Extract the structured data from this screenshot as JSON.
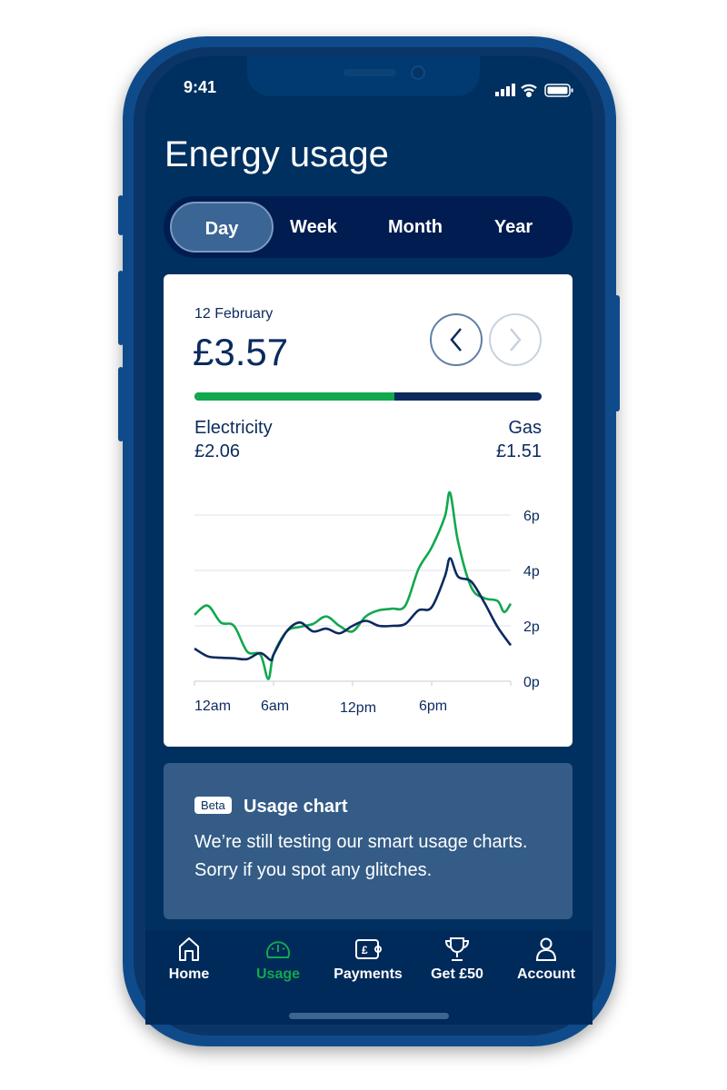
{
  "status_bar": {
    "time": "9:41"
  },
  "page_title": "Energy usage",
  "period_tabs": [
    {
      "label": "Day",
      "active": true
    },
    {
      "label": "Week"
    },
    {
      "label": "Month"
    },
    {
      "label": "Year"
    }
  ],
  "summary": {
    "date": "12 February",
    "total": "£3.57",
    "electricity_label": "Electricity",
    "electricity_value": "£2.06",
    "gas_label": "Gas",
    "gas_value": "£1.51",
    "electricity_share": 0.577
  },
  "colors": {
    "electricity": "#11a84e",
    "gas": "#0b2a5e",
    "background": "#00305f",
    "accent": "#11a84e"
  },
  "chart_data": {
    "type": "line",
    "x_ticks": [
      "12am",
      "6am",
      "12pm",
      "6pm"
    ],
    "y_ticks": [
      "0p",
      "2p",
      "4p",
      "6p"
    ],
    "xlim": [
      0,
      24
    ],
    "ylim": [
      0,
      6
    ],
    "grid": true,
    "y_axis_position": "right",
    "series": [
      {
        "key": "electricity",
        "x": [
          0,
          1,
          2,
          3,
          4,
          5,
          5.6,
          6,
          7,
          8,
          9,
          10,
          11,
          12,
          13,
          14,
          15,
          16,
          17,
          18,
          19,
          19.4,
          20,
          21,
          22,
          23,
          23.5,
          24
        ],
        "y": [
          2.4,
          2.73,
          2.12,
          2.0,
          1.07,
          0.96,
          0.08,
          0.96,
          1.8,
          1.96,
          2.07,
          2.34,
          2.0,
          1.8,
          2.34,
          2.56,
          2.62,
          2.73,
          4.05,
          4.83,
          5.94,
          6.8,
          5.05,
          3.4,
          3.0,
          2.9,
          2.5,
          2.8
        ]
      },
      {
        "key": "gas",
        "x": [
          0,
          1,
          2,
          3,
          4,
          5,
          5.8,
          6,
          7,
          8,
          9,
          10,
          11,
          12,
          13,
          14,
          15,
          16,
          17,
          18,
          19,
          19.4,
          20,
          21,
          22,
          23,
          24
        ],
        "y": [
          1.18,
          0.9,
          0.85,
          0.83,
          0.8,
          1.02,
          0.76,
          0.96,
          1.8,
          2.12,
          1.8,
          1.9,
          1.73,
          2.0,
          2.18,
          2.0,
          2.0,
          2.07,
          2.56,
          2.67,
          3.78,
          4.44,
          3.78,
          3.6,
          2.84,
          1.96,
          1.3
        ]
      }
    ]
  },
  "beta": {
    "badge": "Beta",
    "title": "Usage chart",
    "text": "We’re still testing our smart usage charts. Sorry if you spot any glitches."
  },
  "nav": [
    {
      "label": "Home",
      "icon": "home-icon"
    },
    {
      "label": "Usage",
      "icon": "gauge-icon",
      "active": true
    },
    {
      "label": "Payments",
      "icon": "wallet-icon"
    },
    {
      "label": "Get £50",
      "icon": "trophy-icon"
    },
    {
      "label": "Account",
      "icon": "person-icon"
    }
  ]
}
